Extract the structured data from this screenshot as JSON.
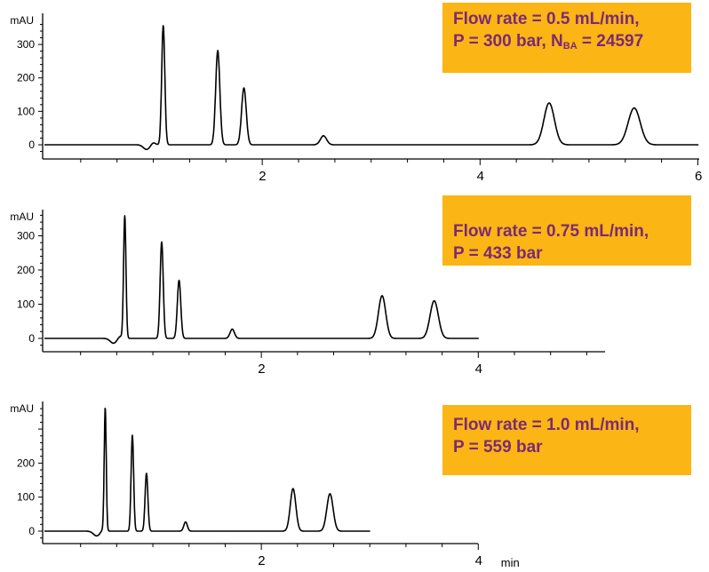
{
  "chart_data": [
    {
      "type": "line",
      "ylabel": "mAU",
      "yticks": [
        0,
        100,
        200,
        300
      ],
      "xticks": [
        2,
        4,
        6
      ],
      "xlim": [
        0,
        6
      ],
      "ylim": [
        -30,
        385
      ],
      "x_end": 6,
      "peaks": [
        {
          "rt": 1.09,
          "height": 358
        },
        {
          "rt": 1.59,
          "height": 282
        },
        {
          "rt": 1.83,
          "height": 170
        },
        {
          "rt": 2.56,
          "height": 27
        },
        {
          "rt": 4.63,
          "height": 125
        },
        {
          "rt": 5.41,
          "height": 110
        }
      ],
      "note_lines": [
        "Flow rate = 0.5 mL/min,",
        "P = 300 bar, N"
      ],
      "note_sub": "BA",
      "note_tail": " = 24597"
    },
    {
      "type": "line",
      "ylabel": "mAU",
      "yticks": [
        0,
        100,
        200,
        300
      ],
      "xticks": [
        2,
        4
      ],
      "xlim": [
        0,
        6
      ],
      "ylim": [
        -30,
        385
      ],
      "x_end": 4,
      "peaks": [
        {
          "rt": 0.74,
          "height": 358
        },
        {
          "rt": 1.08,
          "height": 282
        },
        {
          "rt": 1.24,
          "height": 170
        },
        {
          "rt": 1.73,
          "height": 27
        },
        {
          "rt": 3.11,
          "height": 125
        },
        {
          "rt": 3.59,
          "height": 110
        }
      ],
      "note_lines": [
        "Flow rate = 0.75 mL/min,",
        "P = 433 bar"
      ]
    },
    {
      "type": "line",
      "ylabel": "mAU",
      "yticks": [
        0,
        100,
        200
      ],
      "xticks": [
        2,
        4
      ],
      "xlim": [
        0,
        4
      ],
      "ylim": [
        -30,
        385
      ],
      "x_end": 3,
      "xlabel": "min",
      "peaks": [
        {
          "rt": 0.56,
          "height": 358
        },
        {
          "rt": 0.81,
          "height": 282
        },
        {
          "rt": 0.94,
          "height": 170
        },
        {
          "rt": 1.3,
          "height": 27
        },
        {
          "rt": 2.29,
          "height": 125
        },
        {
          "rt": 2.63,
          "height": 110
        }
      ],
      "note_lines": [
        "Flow rate = 1.0 mL/min,",
        "P = 559 bar"
      ]
    }
  ]
}
